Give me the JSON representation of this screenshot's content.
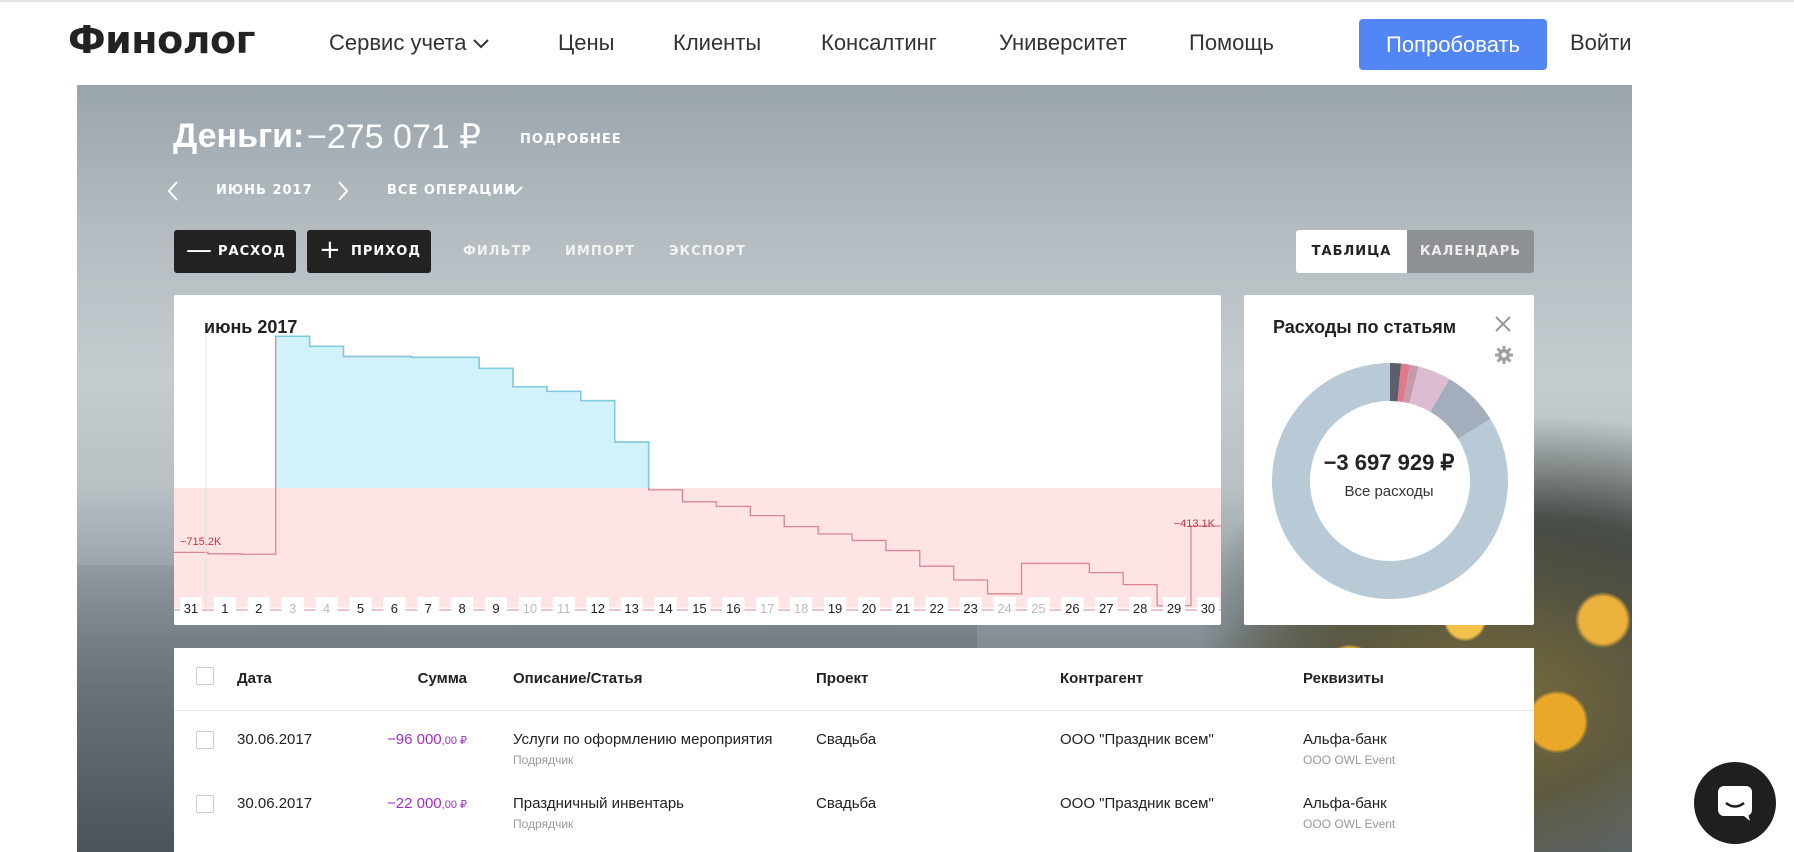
{
  "nav": {
    "logo": "Финолог",
    "service": "Сервис учета",
    "prices": "Цены",
    "clients": "Клиенты",
    "consulting": "Консалтинг",
    "university": "Университет",
    "help": "Помощь",
    "try": "Попробовать",
    "login": "Войти"
  },
  "header": {
    "money_label": "Деньги:",
    "money_value": "−275 071 ₽",
    "details": "ПОДРОБНЕЕ",
    "period": "ИЮНЬ 2017",
    "operations": "ВСЕ ОПЕРАЦИИ"
  },
  "actions": {
    "expense": "РАСХОД",
    "income": "ПРИХОД",
    "filter": "ФИЛЬТР",
    "import": "ИМПОРТ",
    "export": "ЭКСПОРТ",
    "view_table": "ТАБЛИЦА",
    "view_calendar": "КАЛЕНДАРЬ"
  },
  "chart_data": {
    "type": "area",
    "title": "июнь 2017",
    "categories": [
      "31",
      "1",
      "2",
      "3",
      "4",
      "5",
      "6",
      "7",
      "8",
      "9",
      "10",
      "11",
      "12",
      "13",
      "14",
      "15",
      "16",
      "17",
      "18",
      "19",
      "20",
      "21",
      "22",
      "23",
      "24",
      "25",
      "26",
      "27",
      "28",
      "29",
      "30"
    ],
    "dimmed_days": [
      "3",
      "4",
      "10",
      "11",
      "17",
      "18",
      "24",
      "25"
    ],
    "values": [
      -700,
      -715.2,
      -720,
      1650,
      1540,
      1430,
      1430,
      1420,
      1420,
      1300,
      1100,
      1050,
      950,
      500,
      -20,
      -150,
      -200,
      -300,
      -420,
      -500,
      -570,
      -680,
      -850,
      -1000,
      -1150,
      -820,
      -820,
      -920,
      -1050,
      -1280,
      -413.1
    ],
    "annotations": {
      "start_label": "−715.2K",
      "end_label": "−413.1K"
    },
    "colors": {
      "positive_fill": "#d2f2fb",
      "positive_line": "#7ccbe0",
      "negative_fill": "#ffe4e6",
      "negative_line": "#d9878f",
      "label": "#c8333f"
    }
  },
  "donut": {
    "title": "Расходы по статьям",
    "total": "−3 697 929 ₽",
    "subtitle": "Все расходы",
    "segments": [
      {
        "value": 0.015,
        "color": "#5a5f6b"
      },
      {
        "value": 0.012,
        "color": "#e07a88"
      },
      {
        "value": 0.012,
        "color": "#c79aab"
      },
      {
        "value": 0.045,
        "color": "#dcbcd0"
      },
      {
        "value": 0.078,
        "color": "#a3aebd"
      },
      {
        "value": 0.838,
        "color": "#b7cad6"
      }
    ]
  },
  "table": {
    "headers": {
      "date": "Дата",
      "amount": "Сумма",
      "description": "Описание/Статья",
      "project": "Проект",
      "counterparty": "Контрагент",
      "details": "Реквизиты"
    },
    "rows": [
      {
        "date": "30.06.2017",
        "amount_int": "−96 000",
        "amount_dec": ",00 ₽",
        "description": "Услуги по оформлению мероприятия",
        "category": "Подрядчик",
        "project": "Свадьба",
        "counterparty": "ООО \"Праздник всем\"",
        "bank": "Альфа-банк",
        "company": "ООО OWL Event"
      },
      {
        "date": "30.06.2017",
        "amount_int": "−22 000",
        "amount_dec": ",00 ₽",
        "description": "Праздничный инвентарь",
        "category": "Подрядчик",
        "project": "Свадьба",
        "counterparty": "ООО \"Праздник всем\"",
        "bank": "Альфа-банк",
        "company": "ООО OWL Event"
      }
    ]
  }
}
